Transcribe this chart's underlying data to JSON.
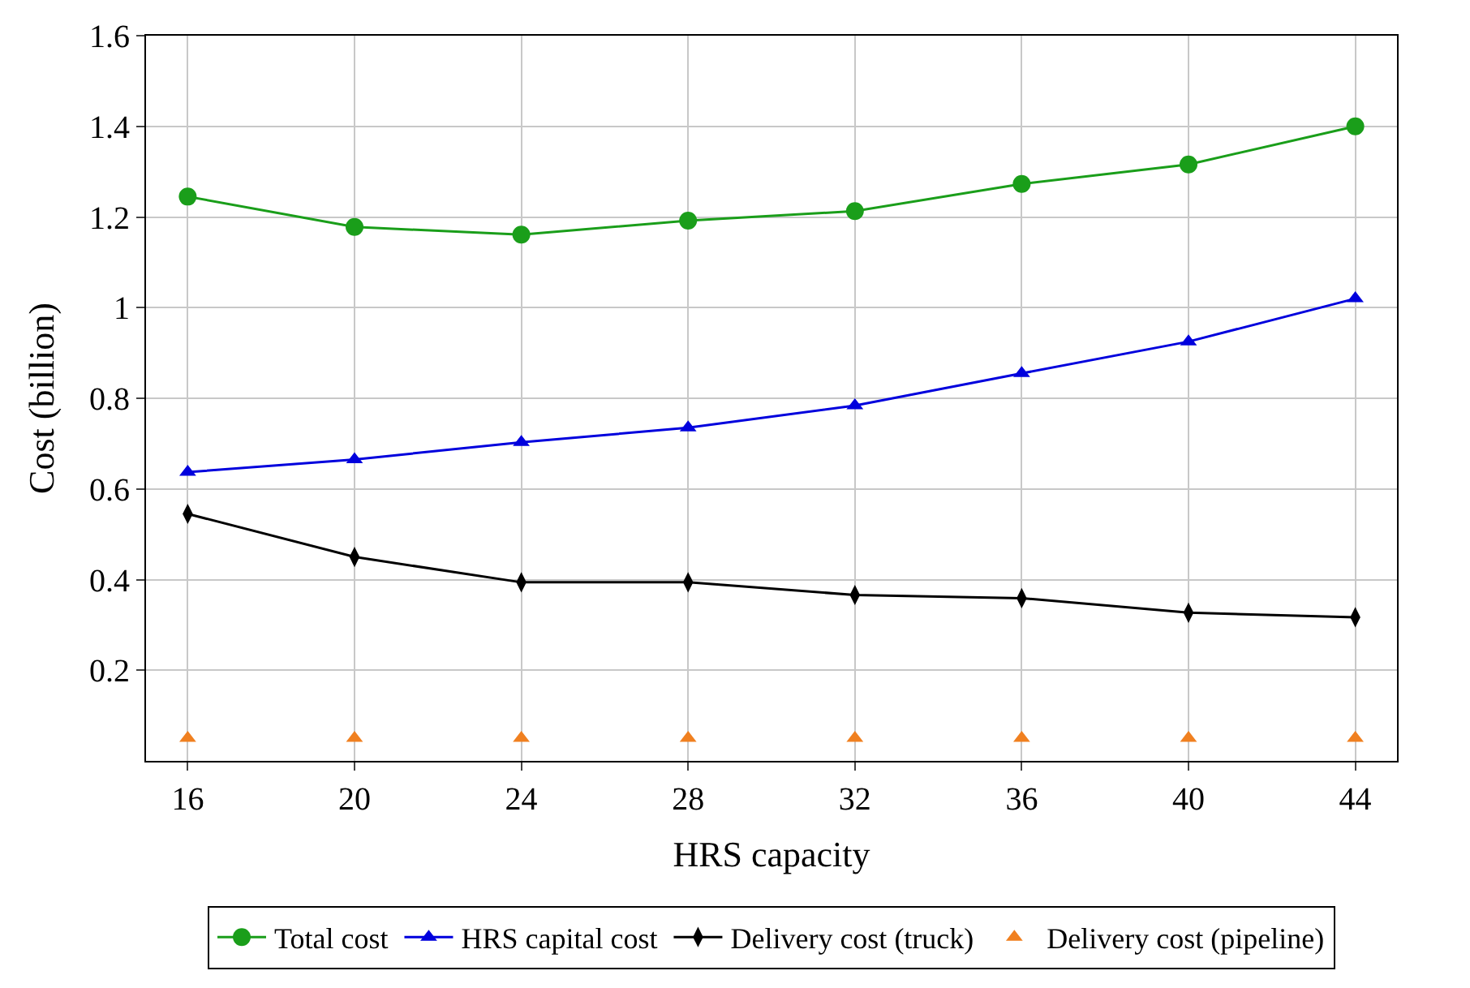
{
  "chart_data": {
    "type": "line",
    "xlabel": "HRS capacity",
    "ylabel": "Cost (billion)",
    "x": [
      16,
      20,
      24,
      28,
      32,
      36,
      40,
      44
    ],
    "xlim": [
      15,
      45
    ],
    "xticks": [
      16,
      20,
      24,
      28,
      32,
      36,
      40,
      44
    ],
    "ylim": [
      0,
      1.6
    ],
    "yticks": [
      0.2,
      0.4,
      0.6,
      0.8,
      1,
      1.2,
      1.4,
      1.6
    ],
    "grid": true,
    "legend": "bottom",
    "series": [
      {
        "name": "Total cost",
        "color": "#1a9e1a",
        "marker": "circle",
        "values": [
          1.245,
          1.178,
          1.161,
          1.192,
          1.213,
          1.273,
          1.316,
          1.4
        ]
      },
      {
        "name": "HRS capital cost",
        "color": "#0000dd",
        "marker": "triangle",
        "values": [
          0.637,
          0.665,
          0.703,
          0.735,
          0.784,
          0.855,
          0.925,
          1.02
        ]
      },
      {
        "name": "Delivery cost (truck)",
        "color": "#000000",
        "marker": "diamond",
        "values": [
          0.545,
          0.45,
          0.394,
          0.394,
          0.366,
          0.359,
          0.327,
          0.317
        ]
      },
      {
        "name": "Delivery cost (pipeline)",
        "color": "#f08020",
        "type": "scatter",
        "marker": "triangle",
        "values": [
          0.05,
          0.05,
          0.05,
          0.05,
          0.05,
          0.05,
          0.05,
          0.05
        ]
      }
    ]
  }
}
